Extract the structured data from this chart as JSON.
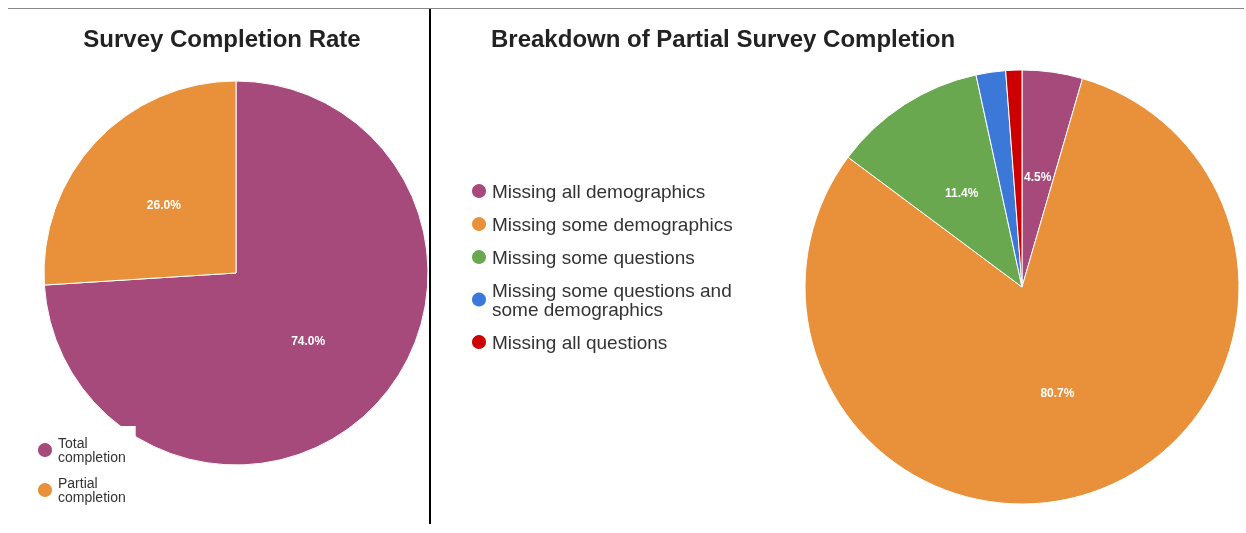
{
  "chart_data": [
    {
      "type": "pie",
      "title": "Survey Completion Rate",
      "categories": [
        "Total completion",
        "Partial completion"
      ],
      "values": [
        74.0,
        26.0
      ],
      "colors": [
        "#a54a7b",
        "#e8913a"
      ],
      "value_labels": [
        "74.0%",
        "26.0%"
      ],
      "legend": "bottom left"
    },
    {
      "type": "pie",
      "title": "Breakdown of Partial Survey Completion",
      "categories": [
        "Missing all demographics",
        "Missing some demographics",
        "Missing some questions",
        "Missing some questions and some demographics",
        "Missing all questions"
      ],
      "values": [
        4.5,
        80.7,
        11.4,
        2.2,
        1.2
      ],
      "colors": [
        "#a54a7b",
        "#e8913a",
        "#6aa84f",
        "#3c78d8",
        "#cc0000"
      ],
      "value_labels": [
        "4.5%",
        "80.7%",
        "11.4%",
        null,
        null
      ],
      "legend": "left"
    }
  ]
}
